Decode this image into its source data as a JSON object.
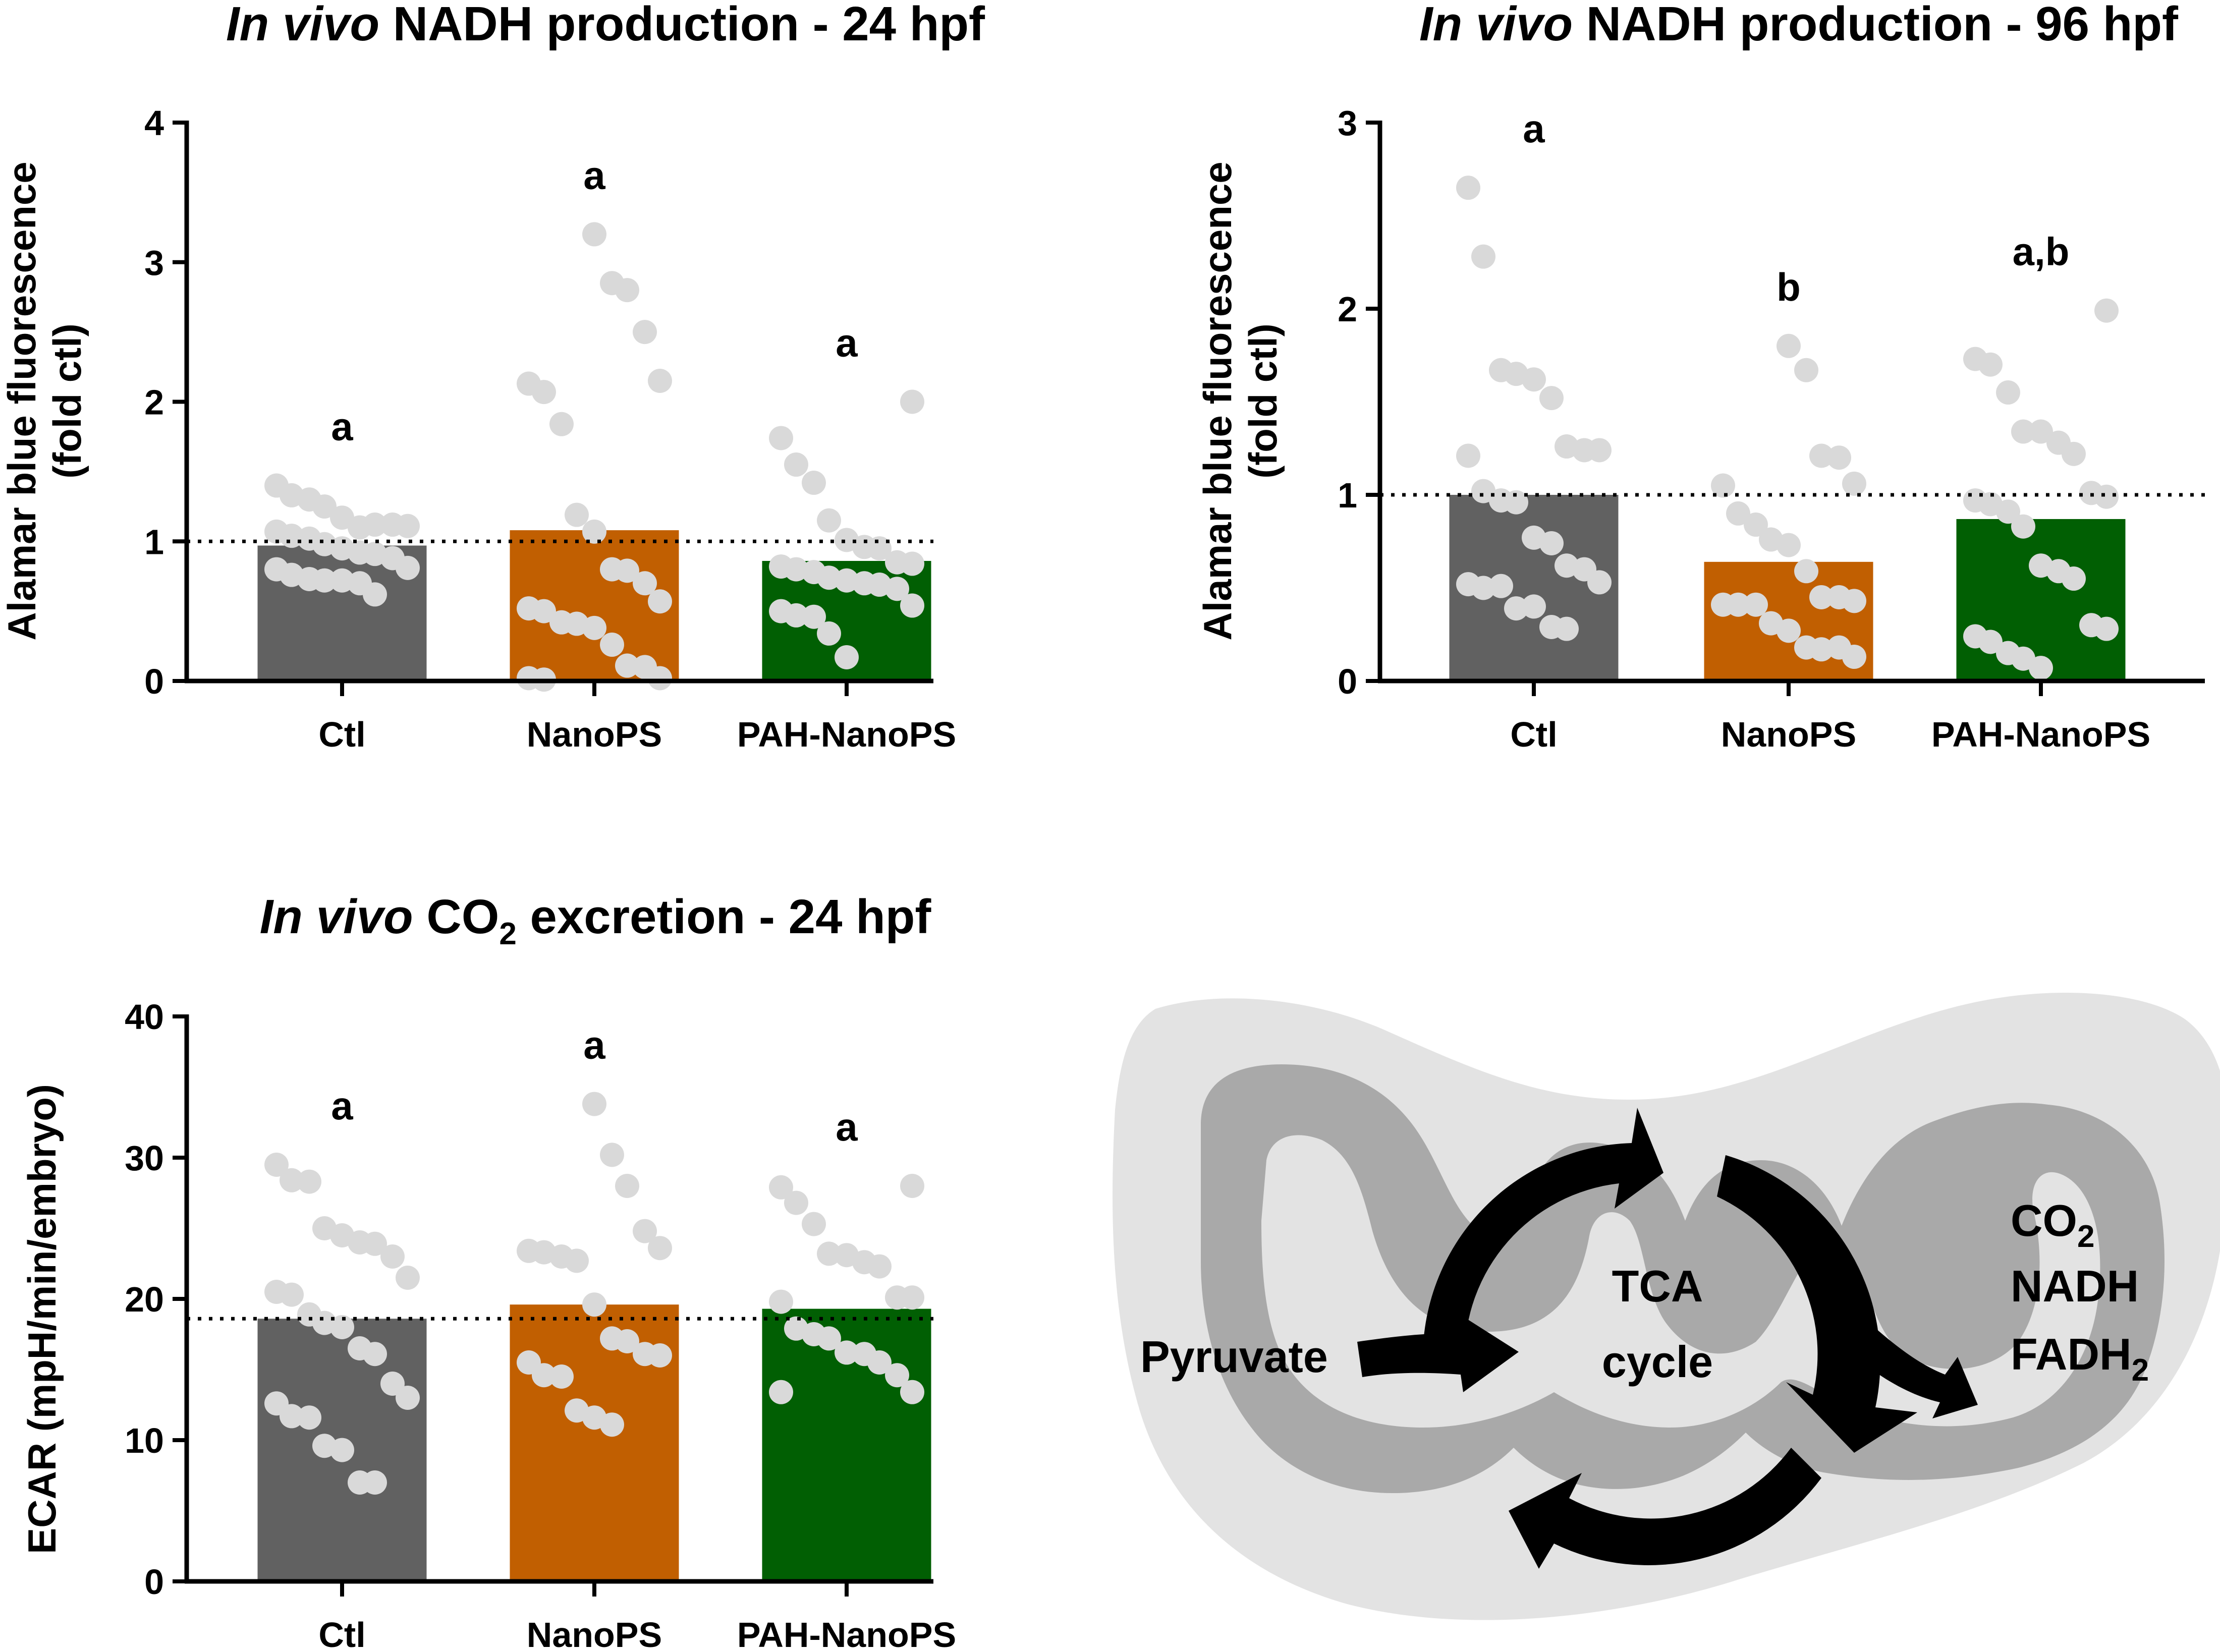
{
  "chart_data": [
    {
      "id": "c1",
      "type": "bar",
      "title_italic": "In vivo",
      "title_rest": "NADH production - 24 hpf",
      "ylabel_line1": "Alamar blue fluorescence",
      "ylabel_line2": "(fold ctl)",
      "xlabel": "",
      "ylim": [
        0,
        4
      ],
      "yticks": [
        "0",
        "1",
        "2",
        "3",
        "4"
      ],
      "reference_line": 1.0,
      "categories": [
        "Ctl",
        "NanoPS",
        "PAH-NanoPS"
      ],
      "values": [
        0.97,
        1.08,
        0.86
      ],
      "colors": [
        "#616161",
        "#c15f01",
        "#015f03"
      ],
      "significance": [
        "a",
        "a",
        "a"
      ],
      "points": [
        [
          1.4,
          1.33,
          1.3,
          1.25,
          1.17,
          1.1,
          1.12,
          1.12,
          1.11,
          1.07,
          1.04,
          1.02,
          0.98,
          0.95,
          0.92,
          0.91,
          0.88,
          0.81,
          0.8,
          0.76,
          0.73,
          0.72,
          0.72,
          0.7,
          0.62
        ],
        [
          3.2,
          2.85,
          2.8,
          2.5,
          2.15,
          2.13,
          2.07,
          1.84,
          1.19,
          1.07,
          0.8,
          0.79,
          0.7,
          0.57,
          0.52,
          0.5,
          0.42,
          0.41,
          0.38,
          0.26,
          0.11,
          0.1,
          0.02,
          0.02,
          0.01
        ],
        [
          2.0,
          1.74,
          1.55,
          1.42,
          1.15,
          1.01,
          0.96,
          0.95,
          0.85,
          0.84,
          0.82,
          0.8,
          0.78,
          0.74,
          0.72,
          0.7,
          0.69,
          0.66,
          0.54,
          0.5,
          0.47,
          0.46,
          0.34,
          0.17
        ]
      ]
    },
    {
      "id": "c2",
      "type": "bar",
      "title_italic": "In vivo",
      "title_rest": "NADH production - 96 hpf",
      "ylabel_line1": "Alamar blue fluorescence",
      "ylabel_line2": "(fold ctl)",
      "xlabel": "",
      "ylim": [
        0,
        3
      ],
      "yticks": [
        "0",
        "1",
        "2",
        "3"
      ],
      "reference_line": 1.0,
      "categories": [
        "Ctl",
        "NanoPS",
        "PAH-NanoPS"
      ],
      "values": [
        1.0,
        0.64,
        0.87
      ],
      "colors": [
        "#616161",
        "#c15f01",
        "#015f03"
      ],
      "significance": [
        "a",
        "b",
        "a,b"
      ],
      "points": [
        [
          2.65,
          2.28,
          1.67,
          1.65,
          1.62,
          1.52,
          1.26,
          1.24,
          1.24,
          1.21,
          1.02,
          0.97,
          0.96,
          0.77,
          0.74,
          0.62,
          0.6,
          0.53,
          0.52,
          0.5,
          0.51,
          0.39,
          0.4,
          0.29,
          0.28
        ],
        [
          1.8,
          1.67,
          1.21,
          1.2,
          1.06,
          1.05,
          0.9,
          0.84,
          0.76,
          0.73,
          0.59,
          0.45,
          0.45,
          0.43,
          0.41,
          0.41,
          0.41,
          0.31,
          0.27,
          0.18,
          0.17,
          0.18,
          0.13
        ],
        [
          1.99,
          1.73,
          1.7,
          1.55,
          1.34,
          1.34,
          1.28,
          1.22,
          1.01,
          0.99,
          0.97,
          0.95,
          0.91,
          0.83,
          0.62,
          0.59,
          0.55,
          0.3,
          0.28,
          0.24,
          0.21,
          0.15,
          0.12,
          0.07
        ]
      ]
    },
    {
      "id": "c3",
      "type": "bar",
      "title_italic": "In vivo",
      "title_co": "CO",
      "title_sub": "2",
      "title_rest": "excretion - 24 hpf",
      "ylabel_line1": "ECAR (mpH/min/embryo)",
      "xlabel": "",
      "ylim": [
        0,
        40
      ],
      "yticks": [
        "0",
        "10",
        "20",
        "30",
        "40"
      ],
      "reference_line": 18.6,
      "categories": [
        "Ctl",
        "NanoPS",
        "PAH-NanoPS"
      ],
      "values": [
        18.6,
        19.6,
        19.3
      ],
      "colors": [
        "#616161",
        "#c15f01",
        "#015f03"
      ],
      "significance": [
        "a",
        "a",
        "a"
      ],
      "points": [
        [
          29.5,
          28.4,
          28.3,
          25.0,
          24.5,
          24.0,
          23.9,
          23.0,
          21.5,
          20.5,
          20.3,
          18.9,
          18.3,
          18.0,
          16.5,
          16.1,
          14.0,
          13.0,
          12.6,
          11.7,
          11.6,
          9.6,
          9.3,
          7.0,
          7.0
        ],
        [
          33.8,
          30.2,
          28.0,
          24.8,
          23.6,
          23.4,
          23.3,
          23.0,
          22.7,
          19.6,
          17.2,
          17.0,
          16.1,
          16.0,
          15.5,
          14.6,
          14.5,
          12.1,
          11.6,
          11.1
        ],
        [
          28.0,
          27.9,
          26.8,
          25.3,
          23.2,
          23.1,
          22.6,
          22.3,
          20.1,
          20.1,
          19.8,
          17.9,
          17.5,
          17.2,
          16.2,
          16.1,
          15.5,
          14.6,
          13.4,
          13.4
        ]
      ]
    }
  ],
  "diagram": {
    "pyruvate": "Pyruvate",
    "tca_line1": "TCA",
    "tca_line2": "cycle",
    "co": "CO",
    "co_sub": "2",
    "nadh": "NADH",
    "fadh": "FADH",
    "fadh_sub": "2"
  }
}
